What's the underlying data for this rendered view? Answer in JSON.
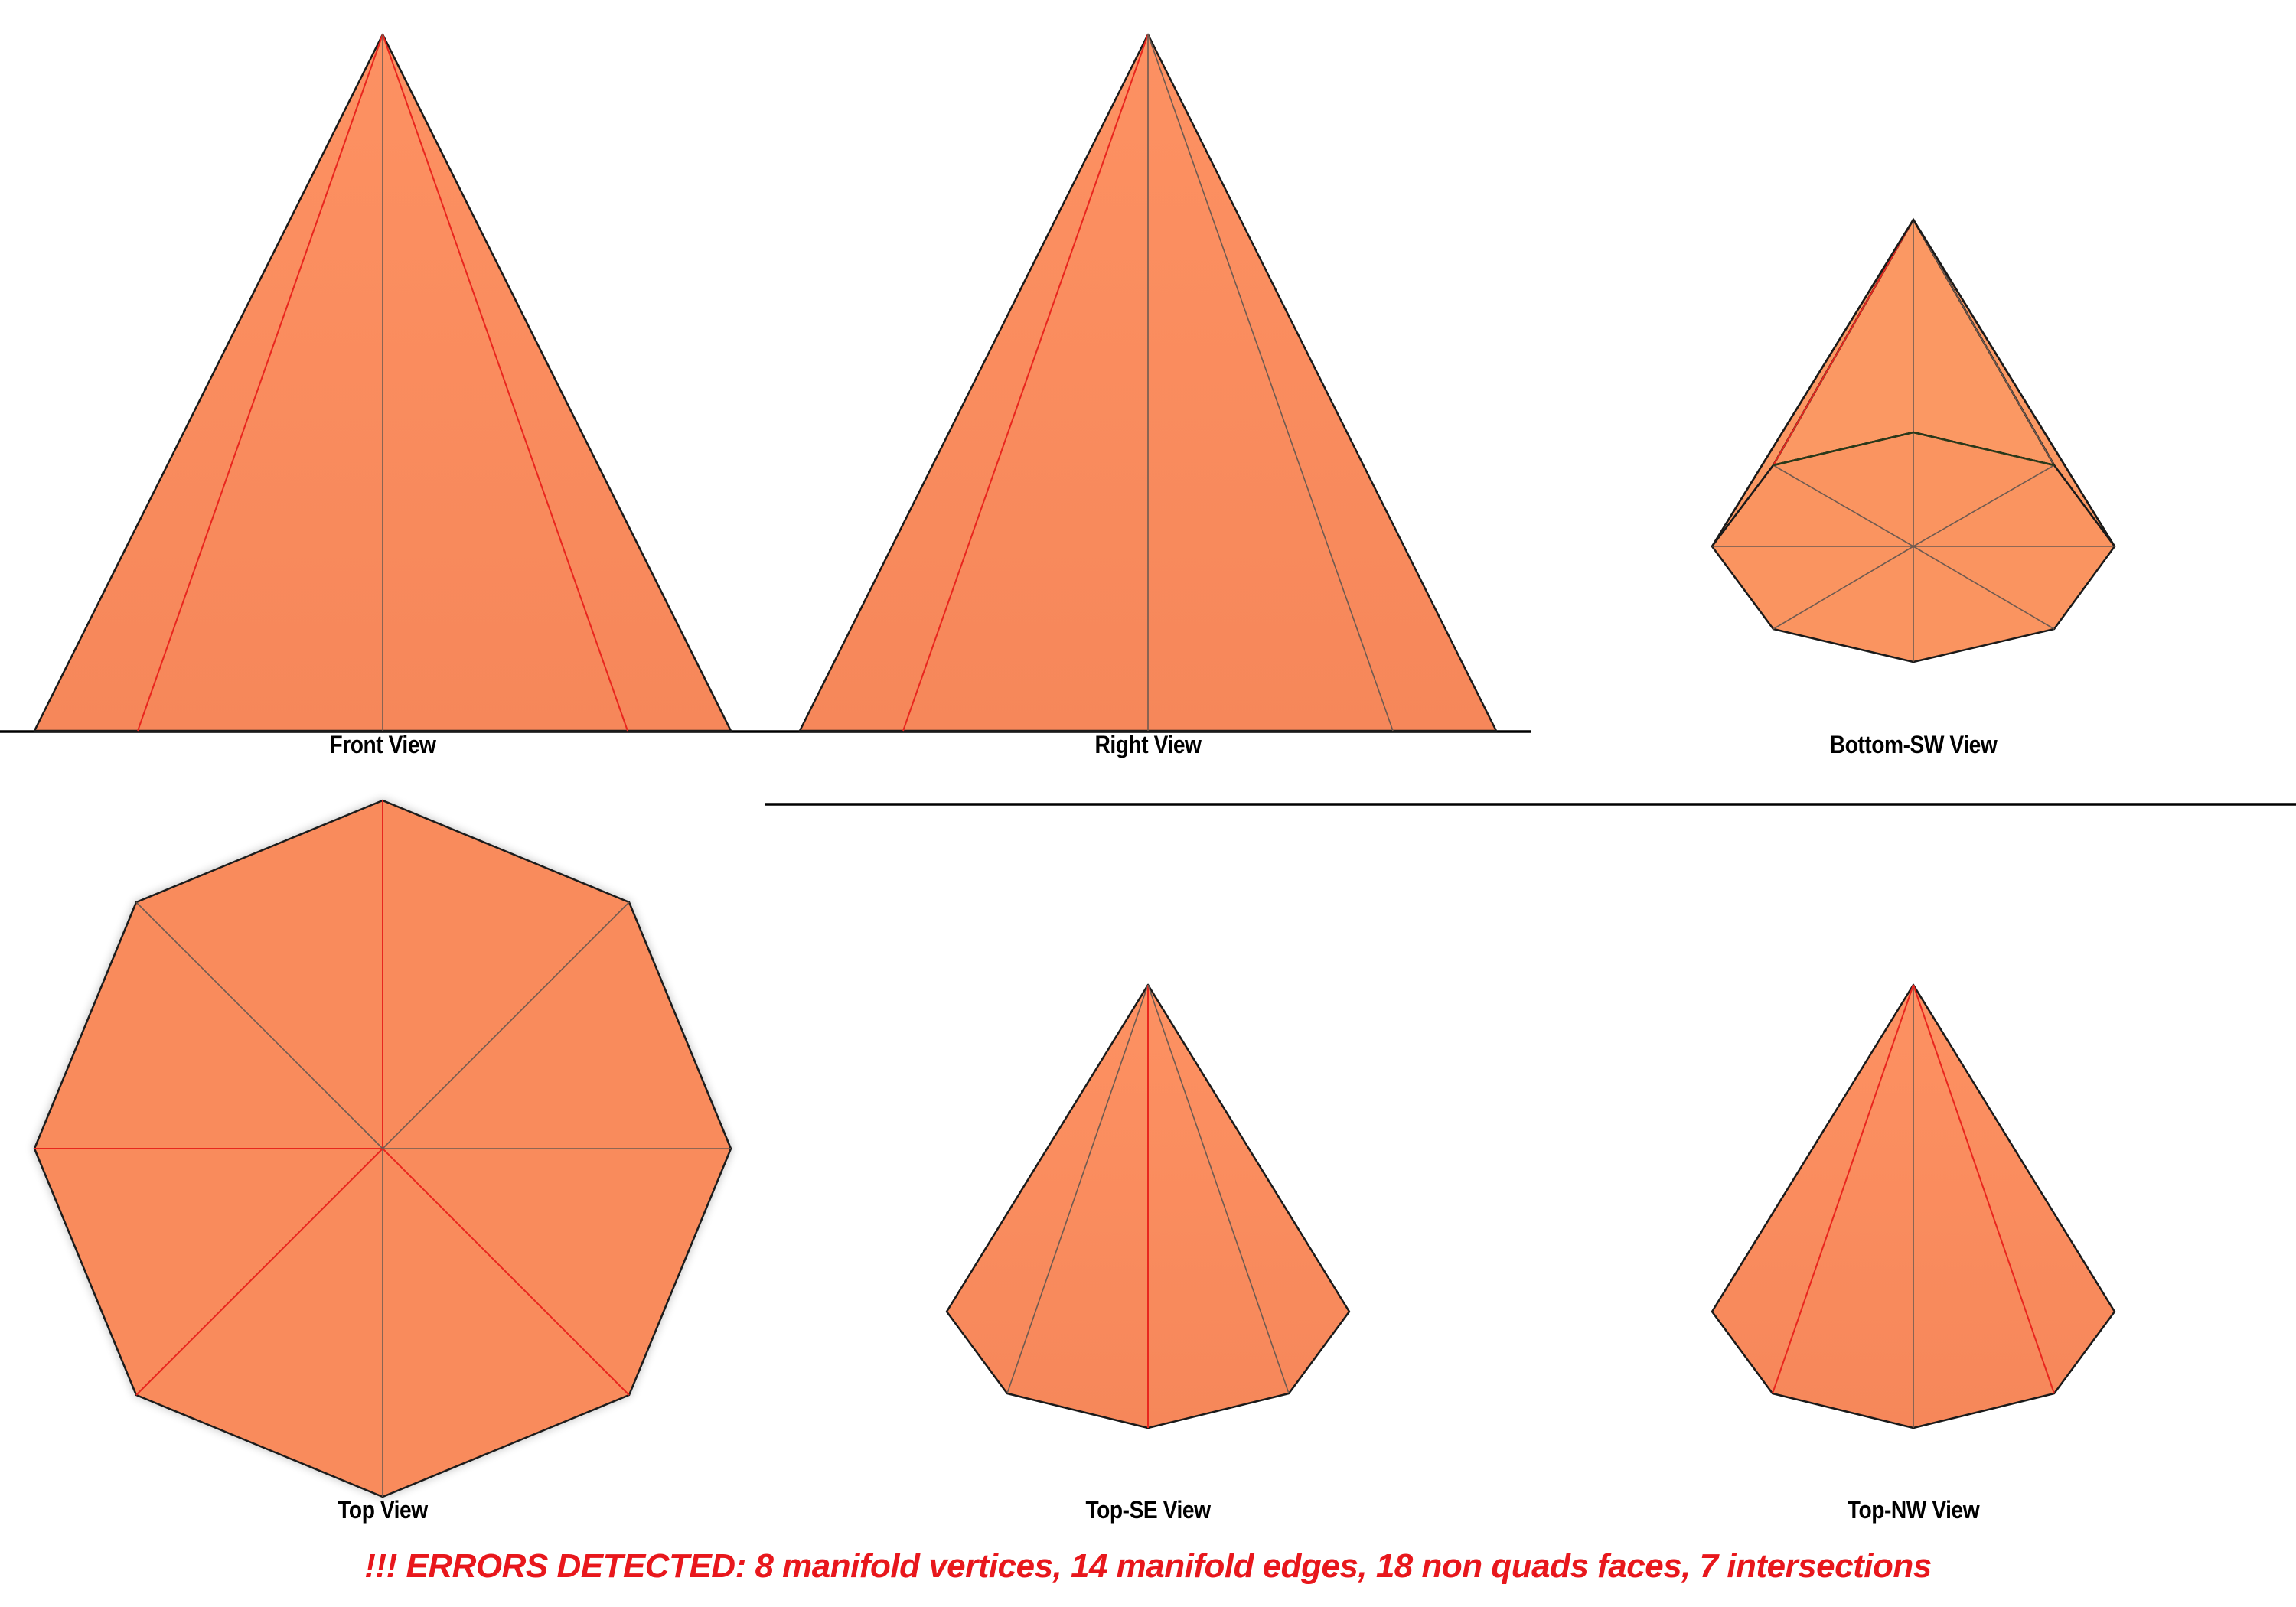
{
  "views": {
    "front": "Front View",
    "right": "Right View",
    "bottom_sw": "Bottom-SW View",
    "top": "Top View",
    "top_se": "Top-SE View",
    "top_nw": "Top-NW View"
  },
  "error_message": "!!! ERRORS DETECTED: 8 manifold vertices, 14 manifold edges, 18 non quads faces, 7 intersections",
  "colors": {
    "face": "#f98b5c",
    "error_edge": "#e8261e",
    "error_text": "#e8171c"
  }
}
